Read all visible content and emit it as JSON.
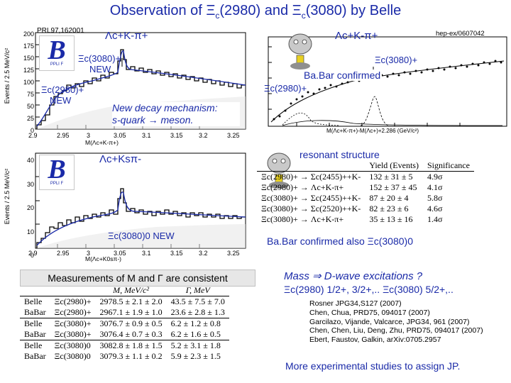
{
  "title": {
    "pre": "Observation of Ξ",
    "sub1": "c",
    "mid": "(2980) and Ξ",
    "sub2": "c",
    "post": "(3080) by Belle"
  },
  "top_left": {
    "ref": "PRL97,162001",
    "channel": "Λc+K-π+",
    "peak1": "Ξc(3080)+",
    "peak1_note": "NEW",
    "peak2": "Ξc(2980)+",
    "peak2_note": "NEW",
    "ylabel": "Events / 2.5 MeV/c²",
    "xlabel": "M(Λc+K-π+)",
    "xticks": [
      "2.9",
      "2.95",
      "3",
      "3.05",
      "3.1",
      "3.15",
      "3.2",
      "3.25"
    ],
    "yticks": [
      "200",
      "175",
      "150",
      "125",
      "100",
      "75",
      "50",
      "25",
      "0"
    ]
  },
  "top_right": {
    "ref": "hep-ex/0607042",
    "channel": "Λc+K-π+",
    "peak1": "Ξc(3080)+",
    "confirmed": "Ba.Bar confirmed",
    "peak2": "Ξc(2980)+",
    "xlabel": "M(Λc+K-π+)-M(Λc+)+2.286 (GeV/c²)"
  },
  "annotation": {
    "line1": "New decay mechanism:",
    "line2": "s-quark → meson."
  },
  "mid_left": {
    "channel": "Λc+Ksπ-",
    "peak": "Ξc(3080)0 NEW",
    "ylabel": "Events / 2.5 MeV/c²",
    "xlabel": "M(Λc+K0sπ-)",
    "xticks": [
      "2.9",
      "2.95",
      "3",
      "3.05",
      "3.1",
      "3.15",
      "3.2",
      "3.25"
    ],
    "yticks": [
      "40",
      "30",
      "20",
      "10",
      "0"
    ]
  },
  "resonant": {
    "heading": "resonant structure",
    "cols": [
      "Yield (Events)",
      "Significance"
    ],
    "rows": [
      {
        "decay": "Ξc(2980)+ → Σc(2455)++K-",
        "yield": "132 ± 31 ± 5",
        "sig": "4.9σ"
      },
      {
        "decay": "Ξc(2980)+ → Λc+K-π+",
        "yield": "152 ± 37 ± 45",
        "sig": "4.1σ"
      },
      {
        "decay": "Ξc(3080)+ → Σc(2455)++K-",
        "yield": "87 ± 20 ± 4",
        "sig": "5.8σ"
      },
      {
        "decay": "Ξc(3080)+ → Σc(2520)++K-",
        "yield": "82 ± 23 ± 6",
        "sig": "4.6σ"
      },
      {
        "decay": "Ξc(3080)+ → Λc+K-π+",
        "yield": "35 ± 13 ± 16",
        "sig": "1.4σ"
      }
    ],
    "also": "Ba.Bar confirmed also Ξc(3080)0"
  },
  "measurements": {
    "heading": "Measurements of M and Γ are consistent",
    "col_m": "M, MeV/c²",
    "col_g": "Γ, MeV",
    "rows": [
      {
        "exp": "Belle",
        "state": "Ξc(2980)+",
        "m": "2978.5 ± 2.1 ± 2.0",
        "g": "43.5 ± 7.5 ± 7.0"
      },
      {
        "exp": "BaBar",
        "state": "Ξc(2980)+",
        "m": "2967.1 ± 1.9 ± 1.0",
        "g": "23.6 ± 2.8 ± 1.3"
      },
      {
        "exp": "Belle",
        "state": "Ξc(3080)+",
        "m": "3076.7 ± 0.9 ± 0.5",
        "g": "6.2 ± 1.2 ± 0.8"
      },
      {
        "exp": "BaBar",
        "state": "Ξc(3080)+",
        "m": "3076.4 ± 0.7 ± 0.3",
        "g": "6.2 ± 1.6 ± 0.5"
      },
      {
        "exp": "Belle",
        "state": "Ξc(3080)0",
        "m": "3082.8 ± 1.8 ± 1.5",
        "g": "5.2 ± 3.1 ± 1.8"
      },
      {
        "exp": "BaBar",
        "state": "Ξc(3080)0",
        "m": "3079.3 ± 1.1 ± 0.2",
        "g": "5.9 ± 2.3 ± 1.5"
      }
    ]
  },
  "interpretation": {
    "line1": "Mass ⇒ D-wave excitations ?",
    "line2": "Ξc(2980) 1/2+, 3/2+,..  Ξc(3080) 5/2+,..",
    "refs": [
      "Rosner JPG34,S127 (2007)",
      "Chen, Chua, PRD75, 094017 (2007)",
      "Garcilazo, Vijande, Valcarce, JPG34, 961 (2007)",
      "Chen, Chen, Liu, Deng, Zhu, PRD75, 094017 (2007)",
      "Ebert, Faustov, Galkin, arXiv:0705.2957"
    ],
    "closing": "More experimental studies to assign JP."
  },
  "logos": {
    "belle_text": "B",
    "belle_sub": "PPLI F"
  },
  "colors": {
    "title_blue": "#1a2aa8",
    "hist": "#000000",
    "fit_blue": "#1a2aa8",
    "ghost": "#b8b8b8"
  }
}
